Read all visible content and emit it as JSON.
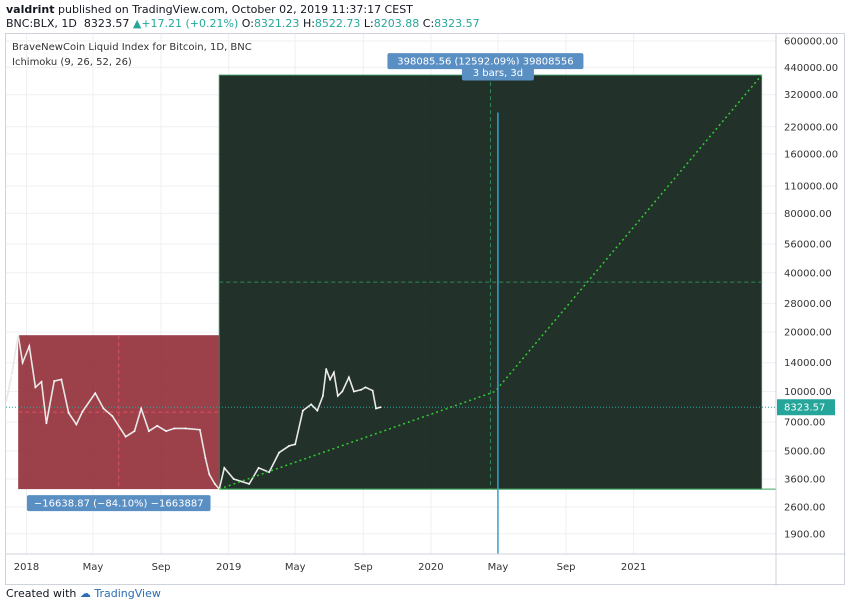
{
  "header": {
    "author": "valdrint",
    "published": " published on TradingView.com, October 02, 2019 11:37:17 CEST",
    "symbol": "BNC:BLX, 1D",
    "last": "8323.57",
    "change": "+17.21 (+0.21%)",
    "open_label": "O:",
    "open": "8321.23",
    "high_label": "H:",
    "high": "8522.73",
    "low_label": "L:",
    "low": "8203.88",
    "close_label": "C:",
    "close": "8323.57"
  },
  "footer": {
    "created": "Created with",
    "brand": "TradingView"
  },
  "chart_data": {
    "type": "line",
    "title": "BraveNewCoin Liquid Index for Bitcoin, 1D, BNC",
    "indicator": "Ichimoku (9, 26, 52, 26)",
    "y_scale": "log",
    "ylim": [
      1500,
      650000
    ],
    "y_ticks": [
      {
        "v": 600000,
        "t": "600000.00"
      },
      {
        "v": 440000,
        "t": "440000.00"
      },
      {
        "v": 320000,
        "t": "320000.00"
      },
      {
        "v": 220000,
        "t": "220000.00"
      },
      {
        "v": 160000,
        "t": "160000.00"
      },
      {
        "v": 110000,
        "t": "110000.00"
      },
      {
        "v": 80000,
        "t": "80000.00"
      },
      {
        "v": 56000,
        "t": "56000.00"
      },
      {
        "v": 40000,
        "t": "40000.00"
      },
      {
        "v": 28000,
        "t": "28000.00"
      },
      {
        "v": 20000,
        "t": "20000.00"
      },
      {
        "v": 14000,
        "t": "14000.00"
      },
      {
        "v": 10000,
        "t": "10000.00"
      },
      {
        "v": 7000,
        "t": "7000.00"
      },
      {
        "v": 5000,
        "t": "5000.00"
      },
      {
        "v": 3600,
        "t": "3600.00"
      },
      {
        "v": 2600,
        "t": "2600.00"
      },
      {
        "v": 1900,
        "t": "1900.00"
      }
    ],
    "x_ticks": [
      {
        "d": "2018-01-01",
        "t": "2018"
      },
      {
        "d": "2018-05-01",
        "t": "May"
      },
      {
        "d": "2018-09-01",
        "t": "Sep"
      },
      {
        "d": "2019-01-01",
        "t": "2019"
      },
      {
        "d": "2019-05-01",
        "t": "May"
      },
      {
        "d": "2019-09-01",
        "t": "Sep"
      },
      {
        "d": "2020-01-01",
        "t": "2020"
      },
      {
        "d": "2020-05-01",
        "t": "May"
      },
      {
        "d": "2020-09-01",
        "t": "Sep"
      },
      {
        "d": "2021-01-01",
        "t": "2021"
      }
    ],
    "xlim": [
      "2017-11-25",
      "2021-09-15"
    ],
    "last_price": {
      "v": 8323.57,
      "t": "8323.57"
    },
    "series": [
      {
        "values": [
          [
            "2017-11-25",
            8800
          ],
          [
            "2017-12-05",
            12000
          ],
          [
            "2017-12-17",
            19300
          ],
          [
            "2017-12-25",
            14000
          ],
          [
            "2018-01-06",
            17000
          ],
          [
            "2018-01-17",
            10500
          ],
          [
            "2018-01-28",
            11200
          ],
          [
            "2018-02-06",
            6900
          ],
          [
            "2018-02-20",
            11300
          ],
          [
            "2018-03-05",
            11500
          ],
          [
            "2018-03-18",
            7800
          ],
          [
            "2018-04-01",
            6800
          ],
          [
            "2018-04-12",
            7900
          ],
          [
            "2018-05-05",
            9800
          ],
          [
            "2018-05-20",
            8200
          ],
          [
            "2018-06-05",
            7500
          ],
          [
            "2018-06-29",
            5900
          ],
          [
            "2018-07-15",
            6300
          ],
          [
            "2018-07-27",
            8200
          ],
          [
            "2018-08-10",
            6300
          ],
          [
            "2018-08-25",
            6700
          ],
          [
            "2018-09-10",
            6300
          ],
          [
            "2018-09-25",
            6500
          ],
          [
            "2018-10-15",
            6500
          ],
          [
            "2018-11-10",
            6400
          ],
          [
            "2018-11-20",
            4600
          ],
          [
            "2018-11-27",
            3800
          ],
          [
            "2018-12-07",
            3400
          ],
          [
            "2018-12-15",
            3200
          ],
          [
            "2018-12-24",
            4100
          ],
          [
            "2019-01-10",
            3600
          ],
          [
            "2019-02-07",
            3400
          ],
          [
            "2019-02-24",
            4100
          ],
          [
            "2019-03-15",
            3900
          ],
          [
            "2019-04-02",
            4900
          ],
          [
            "2019-04-20",
            5300
          ],
          [
            "2019-05-01",
            5400
          ],
          [
            "2019-05-15",
            8000
          ],
          [
            "2019-05-30",
            8600
          ],
          [
            "2019-06-10",
            8000
          ],
          [
            "2019-06-20",
            9500
          ],
          [
            "2019-06-26",
            13000
          ],
          [
            "2019-07-03",
            11500
          ],
          [
            "2019-07-10",
            12500
          ],
          [
            "2019-07-17",
            9500
          ],
          [
            "2019-07-25",
            10000
          ],
          [
            "2019-08-06",
            11800
          ],
          [
            "2019-08-15",
            10000
          ],
          [
            "2019-08-28",
            10200
          ],
          [
            "2019-09-05",
            10500
          ],
          [
            "2019-09-18",
            10100
          ],
          [
            "2019-09-24",
            8200
          ],
          [
            "2019-10-02",
            8323.57
          ]
        ]
      }
    ],
    "measures": [
      {
        "from": [
          "2017-12-17",
          19300
        ],
        "to": [
          "2018-12-15",
          3200
        ],
        "label": "−16638.87 (−84.10%) −1663887",
        "color": "#8b1f2a"
      },
      {
        "from": [
          "2018-12-15",
          3200
        ],
        "to": [
          "2021-08-20",
          402000
        ],
        "label": "398085.56 (12592.09%) 39808556",
        "color": "#1f6e36"
      }
    ],
    "projection": [
      [
        "2018-12-15",
        3200
      ],
      [
        "2020-04-26",
        10000
      ],
      [
        "2021-08-20",
        402000
      ]
    ],
    "bars_marker": {
      "d": "2020-05-01",
      "v": 260000,
      "label": "3 bars, 3d"
    }
  }
}
